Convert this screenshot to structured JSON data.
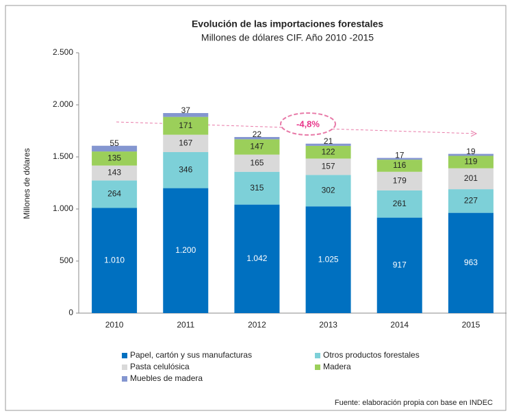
{
  "chart_data": {
    "type": "stacked_bar",
    "title": "Evolución de las importaciones forestales",
    "subtitle": "Millones de dólares CIF. Año 2010 -2015",
    "y_label": "Millones de dólares",
    "annotation": "-4,8%",
    "source": "Fuente: elaboración propia con base en INDEC",
    "categories": [
      "2010",
      "2011",
      "2012",
      "2013",
      "2014",
      "2015"
    ],
    "series": [
      {
        "name": "Papel, cartón y sus manufacturas",
        "color": "#0070c0",
        "values": [
          1010,
          1200,
          1042,
          1025,
          917,
          963
        ],
        "value_labels": [
          "1.010",
          "1.200",
          "1.042",
          "1.025",
          "917",
          "963"
        ]
      },
      {
        "name": "Otros productos forestales",
        "color": "#7dd0d8",
        "values": [
          264,
          346,
          315,
          302,
          261,
          227
        ]
      },
      {
        "name": "Pasta celulósica",
        "color": "#d9d9d9",
        "values": [
          143,
          167,
          165,
          157,
          179,
          201
        ]
      },
      {
        "name": "Madera",
        "color": "#9bcf5a",
        "values": [
          135,
          171,
          147,
          122,
          116,
          119
        ]
      },
      {
        "name": "Muebles de madera",
        "color": "#8496d0",
        "values": [
          55,
          37,
          22,
          21,
          17,
          19
        ]
      }
    ],
    "ylim": [
      0,
      2500
    ],
    "yticks": [
      0,
      500,
      {
        "value": 1000,
        "label": "1.000"
      },
      {
        "value": 1500,
        "label": "1.500"
      },
      {
        "value": 2000,
        "label": "2.000"
      },
      {
        "value": 2500,
        "label": "2.500"
      }
    ]
  }
}
